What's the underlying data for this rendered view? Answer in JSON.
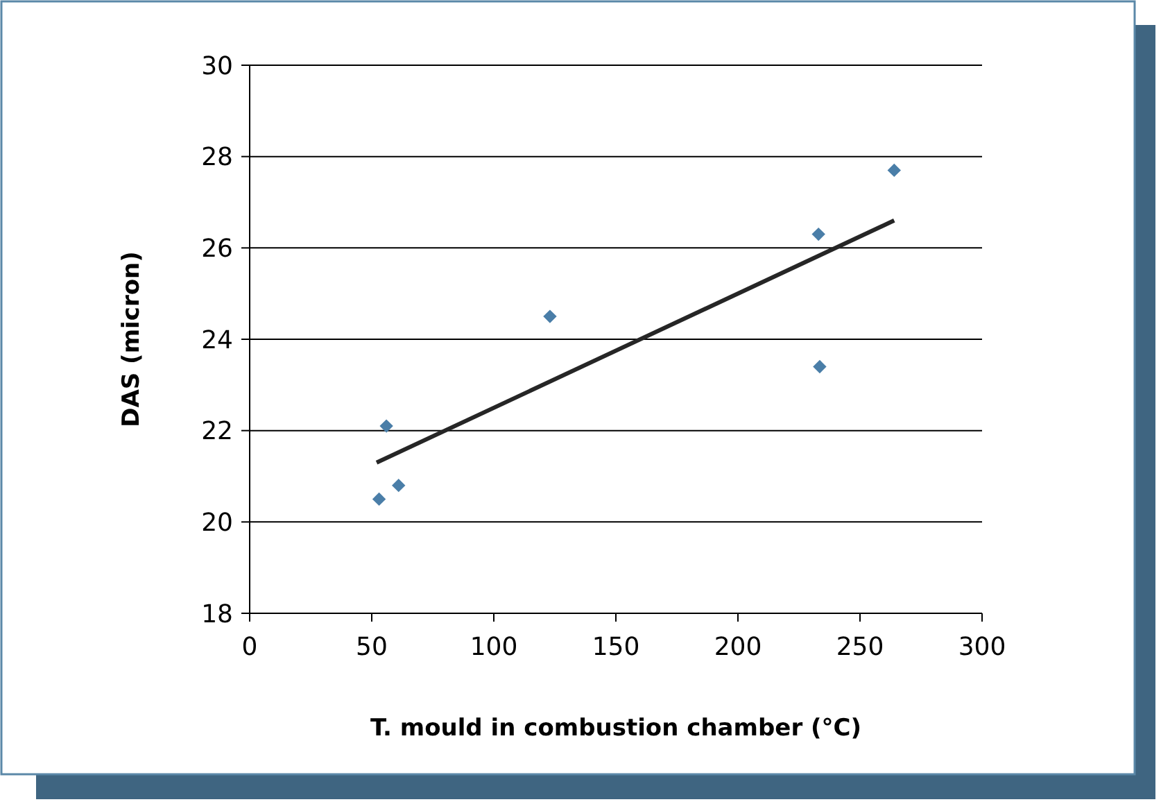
{
  "chart_data": {
    "type": "scatter",
    "xlabel": "T. mould in combustion chamber (°C)",
    "ylabel": "DAS (micron)",
    "xlim": [
      0,
      300
    ],
    "xticks": [
      0,
      50,
      100,
      150,
      200,
      250,
      300
    ],
    "ylim": [
      18,
      30
    ],
    "yticks": [
      18,
      20,
      22,
      24,
      26,
      28,
      30
    ],
    "grid": "y",
    "series": [
      {
        "color": "#4a7ea8",
        "marker": "diamond",
        "x": [
          53,
          56,
          61,
          123,
          233,
          233.5,
          264
        ],
        "values": [
          20.5,
          22.1,
          20.8,
          24.5,
          26.3,
          23.4,
          27.7
        ]
      },
      {
        "type": "line",
        "color": "#262626",
        "marker": "none",
        "x": [
          52,
          264
        ],
        "values": [
          21.3,
          26.6
        ]
      }
    ]
  }
}
